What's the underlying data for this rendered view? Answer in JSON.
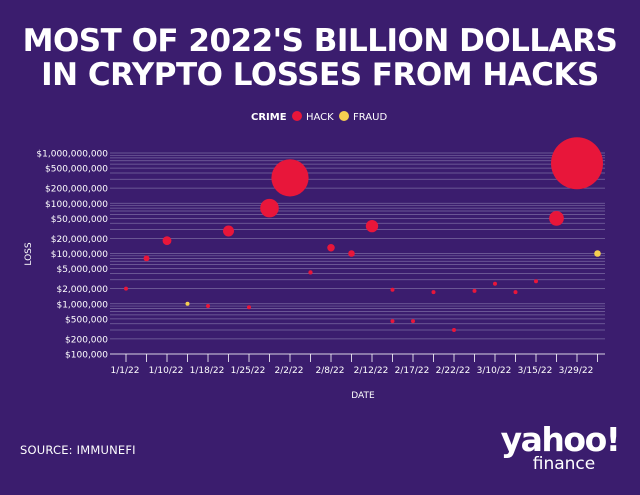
{
  "header": {
    "title_line1": "MOST OF 2022'S BILLION DOLLARS",
    "title_line2": "IN CRYPTO LOSSES FROM HACKS"
  },
  "footer": {
    "source": "SOURCE: IMMUNEFI",
    "logo_word": "yahoo!",
    "logo_sub": "finance"
  },
  "colors": {
    "background": "#3b1d6e",
    "hack": "#e8163a",
    "fraud": "#f6cf50",
    "grid": "#8f83b2"
  },
  "chart_data": {
    "type": "scatter",
    "legend": {
      "title": "CRIME",
      "entries": [
        "HACK",
        "FRAUD"
      ],
      "placement": "top-center"
    },
    "xlabel": "DATE",
    "ylabel": "LOSS",
    "y_scale": "log",
    "ylim": [
      100000,
      1000000000
    ],
    "y_ticks": [
      {
        "value": 1000000000,
        "label": "$1,000,000,000"
      },
      {
        "value": 500000000,
        "label": "$500,000,000"
      },
      {
        "value": 200000000,
        "label": "$200,000,000"
      },
      {
        "value": 100000000,
        "label": "$100,000,000"
      },
      {
        "value": 50000000,
        "label": "$50,000,000"
      },
      {
        "value": 20000000,
        "label": "$20,000,000"
      },
      {
        "value": 10000000,
        "label": "$10,000,000"
      },
      {
        "value": 5000000,
        "label": "$5,000,000"
      },
      {
        "value": 2000000,
        "label": "$2,000,000"
      },
      {
        "value": 1000000,
        "label": "$1,000,000"
      },
      {
        "value": 500000,
        "label": "$500,000"
      },
      {
        "value": 200000,
        "label": "$200,000"
      },
      {
        "value": 100000,
        "label": "$100,000"
      }
    ],
    "x_tick_labels": [
      "1/1/22",
      "1/10/22",
      "1/18/22",
      "1/25/22",
      "2/2/22",
      "2/8/22",
      "2/12/22",
      "2/17/22",
      "2/22/22",
      "3/10/22",
      "3/15/22",
      "3/29/22"
    ],
    "points": [
      {
        "slot": 0,
        "value": 2000000,
        "crime": "HACK"
      },
      {
        "slot": 1,
        "value": 8000000,
        "crime": "HACK"
      },
      {
        "slot": 2,
        "value": 18000000,
        "crime": "HACK"
      },
      {
        "slot": 3,
        "value": 1000000,
        "crime": "FRAUD"
      },
      {
        "slot": 4,
        "value": 900000,
        "crime": "HACK"
      },
      {
        "slot": 5,
        "value": 28000000,
        "crime": "HACK"
      },
      {
        "slot": 6,
        "value": 850000,
        "crime": "HACK"
      },
      {
        "slot": 7,
        "value": 80000000,
        "crime": "HACK"
      },
      {
        "slot": 8,
        "value": 320000000,
        "crime": "HACK"
      },
      {
        "slot": 9,
        "value": 4200000,
        "crime": "HACK"
      },
      {
        "slot": 10,
        "value": 13000000,
        "crime": "HACK"
      },
      {
        "slot": 11,
        "value": 10000000,
        "crime": "HACK"
      },
      {
        "slot": 12,
        "value": 35000000,
        "crime": "HACK"
      },
      {
        "slot": 13,
        "value": 1900000,
        "crime": "HACK"
      },
      {
        "slot": 13,
        "value": 450000,
        "crime": "HACK"
      },
      {
        "slot": 14,
        "value": 450000,
        "crime": "HACK"
      },
      {
        "slot": 15,
        "value": 1700000,
        "crime": "HACK"
      },
      {
        "slot": 16,
        "value": 300000,
        "crime": "HACK"
      },
      {
        "slot": 17,
        "value": 1800000,
        "crime": "HACK"
      },
      {
        "slot": 18,
        "value": 2500000,
        "crime": "HACK"
      },
      {
        "slot": 19,
        "value": 1700000,
        "crime": "HACK"
      },
      {
        "slot": 20,
        "value": 2800000,
        "crime": "HACK"
      },
      {
        "slot": 21,
        "value": 50000000,
        "crime": "HACK"
      },
      {
        "slot": 22,
        "value": 625000000,
        "crime": "HACK"
      },
      {
        "slot": 23,
        "value": 10000000,
        "crime": "FRAUD"
      }
    ]
  }
}
